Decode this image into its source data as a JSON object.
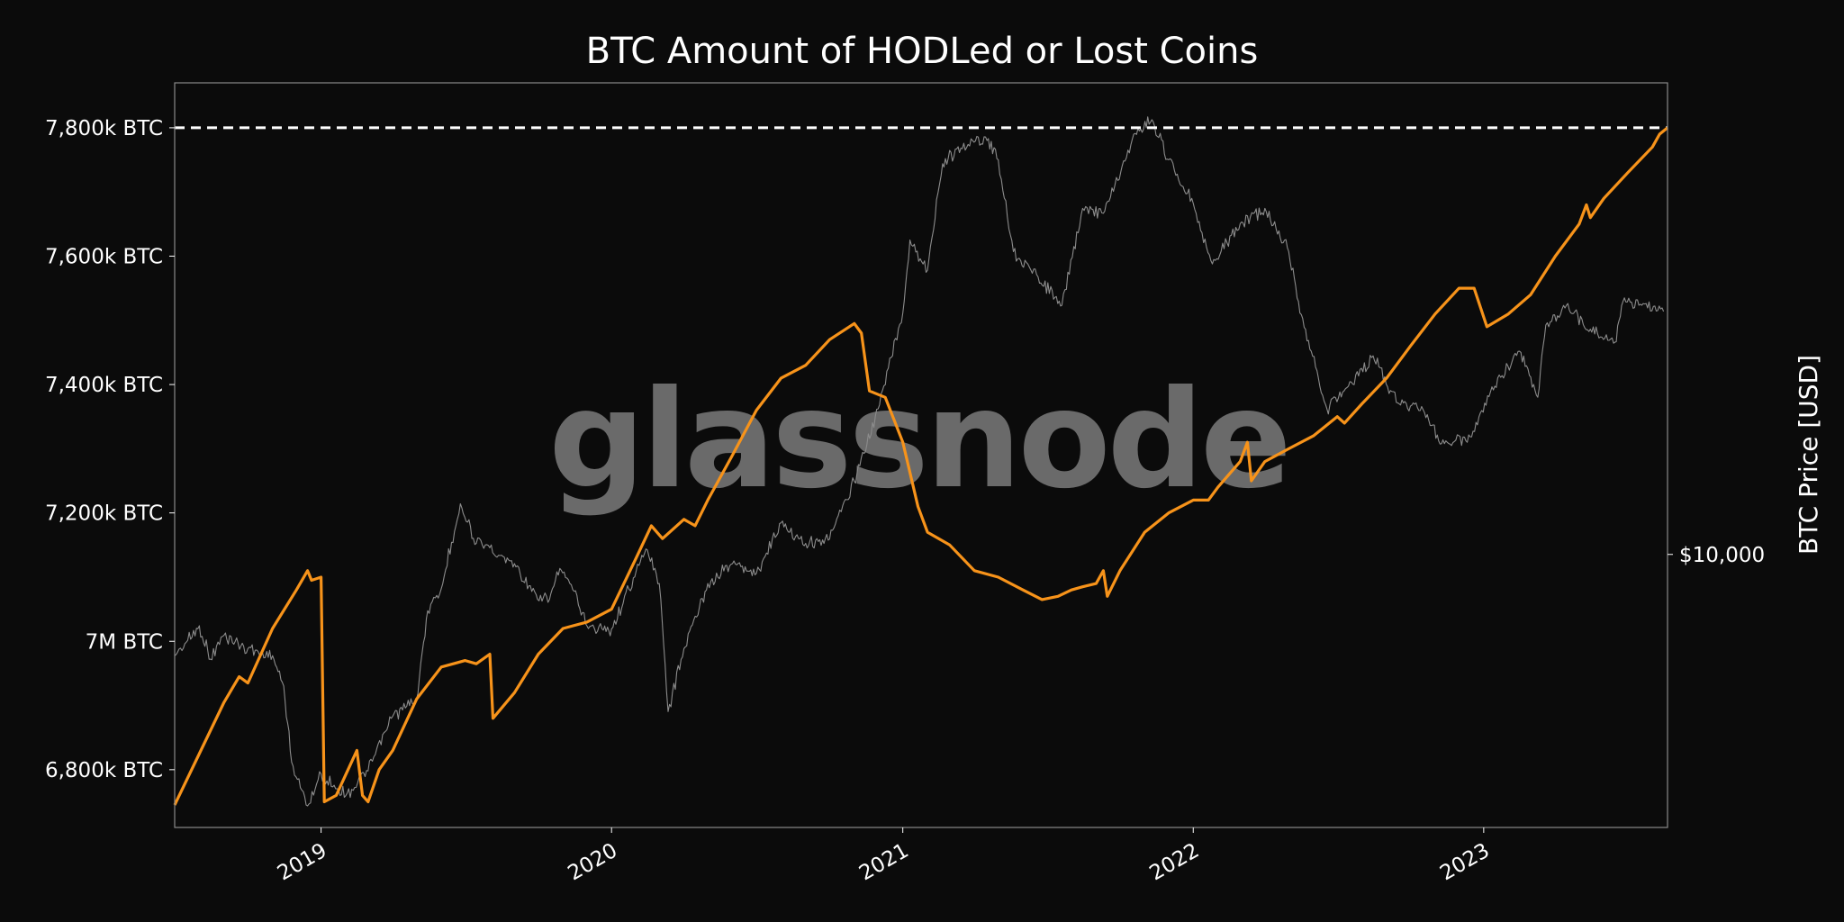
{
  "chart_data": {
    "type": "line",
    "title": "BTC Amount of HODLed or Lost Coins",
    "watermark": "glassnode",
    "x_range": [
      "2018-07-01",
      "2023-08-20"
    ],
    "x_ticks": [
      {
        "date": "2019-01-01",
        "label": "2019"
      },
      {
        "date": "2020-01-01",
        "label": "2020"
      },
      {
        "date": "2021-01-01",
        "label": "2021"
      },
      {
        "date": "2022-01-01",
        "label": "2022"
      },
      {
        "date": "2023-01-01",
        "label": "2023"
      }
    ],
    "y_left": {
      "unit": "BTC",
      "range": [
        6710000,
        7870000
      ],
      "ticks": [
        {
          "value": 6800000,
          "label": "6,800k BTC"
        },
        {
          "value": 7000000,
          "label": "7M BTC"
        },
        {
          "value": 7200000,
          "label": "7,200k BTC"
        },
        {
          "value": 7400000,
          "label": "7,400k BTC"
        },
        {
          "value": 7600000,
          "label": "7,600k BTC"
        },
        {
          "value": 7800000,
          "label": "7,800k BTC"
        }
      ]
    },
    "y_right": {
      "label": "BTC Price [USD]",
      "scale": "log",
      "range": [
        3000,
        80000
      ],
      "ticks": [
        {
          "value": 10000,
          "label": "$10,000"
        }
      ]
    },
    "reference_line": {
      "value": 7800000,
      "style": "dashed",
      "color": "#ffffff"
    },
    "series": [
      {
        "key": "hodled",
        "axis": "left",
        "color": "#f7931a",
        "points": [
          [
            "2018-07-01",
            6745000
          ],
          [
            "2018-08-01",
            6825000
          ],
          [
            "2018-09-01",
            6905000
          ],
          [
            "2018-09-20",
            6945000
          ],
          [
            "2018-10-01",
            6935000
          ],
          [
            "2018-11-01",
            7020000
          ],
          [
            "2018-12-01",
            7080000
          ],
          [
            "2018-12-15",
            7110000
          ],
          [
            "2018-12-20",
            7095000
          ],
          [
            "2019-01-01",
            7100000
          ],
          [
            "2019-01-05",
            6750000
          ],
          [
            "2019-01-20",
            6760000
          ],
          [
            "2019-02-15",
            6830000
          ],
          [
            "2019-02-22",
            6760000
          ],
          [
            "2019-03-01",
            6750000
          ],
          [
            "2019-03-15",
            6800000
          ],
          [
            "2019-04-01",
            6830000
          ],
          [
            "2019-05-01",
            6910000
          ],
          [
            "2019-06-01",
            6960000
          ],
          [
            "2019-07-01",
            6970000
          ],
          [
            "2019-07-15",
            6965000
          ],
          [
            "2019-08-01",
            6980000
          ],
          [
            "2019-08-05",
            6880000
          ],
          [
            "2019-09-01",
            6920000
          ],
          [
            "2019-10-01",
            6980000
          ],
          [
            "2019-11-01",
            7020000
          ],
          [
            "2019-12-01",
            7030000
          ],
          [
            "2020-01-01",
            7050000
          ],
          [
            "2020-02-01",
            7130000
          ],
          [
            "2020-02-20",
            7180000
          ],
          [
            "2020-03-05",
            7160000
          ],
          [
            "2020-04-01",
            7190000
          ],
          [
            "2020-04-15",
            7180000
          ],
          [
            "2020-05-01",
            7220000
          ],
          [
            "2020-06-01",
            7290000
          ],
          [
            "2020-07-01",
            7360000
          ],
          [
            "2020-08-01",
            7410000
          ],
          [
            "2020-09-01",
            7430000
          ],
          [
            "2020-10-01",
            7470000
          ],
          [
            "2020-11-01",
            7495000
          ],
          [
            "2020-11-10",
            7480000
          ],
          [
            "2020-11-20",
            7390000
          ],
          [
            "2020-12-10",
            7380000
          ],
          [
            "2021-01-01",
            7310000
          ],
          [
            "2021-01-20",
            7210000
          ],
          [
            "2021-02-01",
            7170000
          ],
          [
            "2021-03-01",
            7150000
          ],
          [
            "2021-04-01",
            7110000
          ],
          [
            "2021-05-01",
            7100000
          ],
          [
            "2021-06-01",
            7080000
          ],
          [
            "2021-06-25",
            7065000
          ],
          [
            "2021-07-15",
            7070000
          ],
          [
            "2021-08-01",
            7080000
          ],
          [
            "2021-08-15",
            7085000
          ],
          [
            "2021-09-01",
            7090000
          ],
          [
            "2021-09-10",
            7110000
          ],
          [
            "2021-09-15",
            7070000
          ],
          [
            "2021-10-01",
            7110000
          ],
          [
            "2021-11-01",
            7170000
          ],
          [
            "2021-12-01",
            7200000
          ],
          [
            "2022-01-01",
            7220000
          ],
          [
            "2022-01-20",
            7220000
          ],
          [
            "2022-02-01",
            7240000
          ],
          [
            "2022-03-01",
            7280000
          ],
          [
            "2022-03-10",
            7310000
          ],
          [
            "2022-03-15",
            7250000
          ],
          [
            "2022-04-01",
            7280000
          ],
          [
            "2022-05-01",
            7300000
          ],
          [
            "2022-06-01",
            7320000
          ],
          [
            "2022-07-01",
            7350000
          ],
          [
            "2022-07-10",
            7340000
          ],
          [
            "2022-08-01",
            7370000
          ],
          [
            "2022-09-01",
            7410000
          ],
          [
            "2022-10-01",
            7460000
          ],
          [
            "2022-11-01",
            7510000
          ],
          [
            "2022-12-01",
            7550000
          ],
          [
            "2022-12-20",
            7550000
          ],
          [
            "2022-12-28",
            7520000
          ],
          [
            "2023-01-05",
            7490000
          ],
          [
            "2023-02-01",
            7510000
          ],
          [
            "2023-03-01",
            7540000
          ],
          [
            "2023-04-01",
            7600000
          ],
          [
            "2023-05-01",
            7650000
          ],
          [
            "2023-05-10",
            7680000
          ],
          [
            "2023-05-15",
            7660000
          ],
          [
            "2023-06-01",
            7690000
          ],
          [
            "2023-07-01",
            7730000
          ],
          [
            "2023-08-01",
            7770000
          ],
          [
            "2023-08-10",
            7790000
          ],
          [
            "2023-08-20",
            7800000
          ]
        ]
      },
      {
        "key": "price",
        "axis": "right",
        "color": "#8c8c8c",
        "points": [
          [
            "2018-07-01",
            6400
          ],
          [
            "2018-08-01",
            7300
          ],
          [
            "2018-08-15",
            6300
          ],
          [
            "2018-09-01",
            7000
          ],
          [
            "2018-10-01",
            6600
          ],
          [
            "2018-11-01",
            6400
          ],
          [
            "2018-11-15",
            5600
          ],
          [
            "2018-11-25",
            4000
          ],
          [
            "2018-12-15",
            3300
          ],
          [
            "2019-01-01",
            3800
          ],
          [
            "2019-02-01",
            3450
          ],
          [
            "2019-03-01",
            3850
          ],
          [
            "2019-04-01",
            4900
          ],
          [
            "2019-05-01",
            5300
          ],
          [
            "2019-05-15",
            7800
          ],
          [
            "2019-06-01",
            8600
          ],
          [
            "2019-06-25",
            12500
          ],
          [
            "2019-07-15",
            10500
          ],
          [
            "2019-08-01",
            10300
          ],
          [
            "2019-09-01",
            9600
          ],
          [
            "2019-09-30",
            8200
          ],
          [
            "2019-10-15",
            8200
          ],
          [
            "2019-10-28",
            9400
          ],
          [
            "2019-11-15",
            8500
          ],
          [
            "2019-12-01",
            7300
          ],
          [
            "2019-12-20",
            7200
          ],
          [
            "2020-01-01",
            7200
          ],
          [
            "2020-02-01",
            9300
          ],
          [
            "2020-02-15",
            10200
          ],
          [
            "2020-03-01",
            8800
          ],
          [
            "2020-03-12",
            5000
          ],
          [
            "2020-04-01",
            6600
          ],
          [
            "2020-05-01",
            8800
          ],
          [
            "2020-06-01",
            9600
          ],
          [
            "2020-07-01",
            9200
          ],
          [
            "2020-08-01",
            11500
          ],
          [
            "2020-09-01",
            10500
          ],
          [
            "2020-10-01",
            10700
          ],
          [
            "2020-11-01",
            13800
          ],
          [
            "2020-12-01",
            19000
          ],
          [
            "2021-01-01",
            29000
          ],
          [
            "2021-01-10",
            40000
          ],
          [
            "2021-02-01",
            35000
          ],
          [
            "2021-02-20",
            56000
          ],
          [
            "2021-03-15",
            60000
          ],
          [
            "2021-04-15",
            63000
          ],
          [
            "2021-05-01",
            57000
          ],
          [
            "2021-05-20",
            38000
          ],
          [
            "2021-06-20",
            34000
          ],
          [
            "2021-07-20",
            30000
          ],
          [
            "2021-08-15",
            46000
          ],
          [
            "2021-09-10",
            45000
          ],
          [
            "2021-10-20",
            64000
          ],
          [
            "2021-11-10",
            68000
          ],
          [
            "2021-12-01",
            57000
          ],
          [
            "2022-01-01",
            47000
          ],
          [
            "2022-01-25",
            36000
          ],
          [
            "2022-03-01",
            43000
          ],
          [
            "2022-04-01",
            46000
          ],
          [
            "2022-05-01",
            38000
          ],
          [
            "2022-05-15",
            29000
          ],
          [
            "2022-06-18",
            19000
          ],
          [
            "2022-07-15",
            21000
          ],
          [
            "2022-08-15",
            24000
          ],
          [
            "2022-09-15",
            19500
          ],
          [
            "2022-10-15",
            19200
          ],
          [
            "2022-11-09",
            16300
          ],
          [
            "2022-12-15",
            16800
          ],
          [
            "2023-01-15",
            21000
          ],
          [
            "2023-02-15",
            24500
          ],
          [
            "2023-03-10",
            20000
          ],
          [
            "2023-03-20",
            27500
          ],
          [
            "2023-04-15",
            30000
          ],
          [
            "2023-05-15",
            27000
          ],
          [
            "2023-06-15",
            25500
          ],
          [
            "2023-06-25",
            30500
          ],
          [
            "2023-07-15",
            30000
          ],
          [
            "2023-08-15",
            29200
          ]
        ]
      }
    ]
  }
}
